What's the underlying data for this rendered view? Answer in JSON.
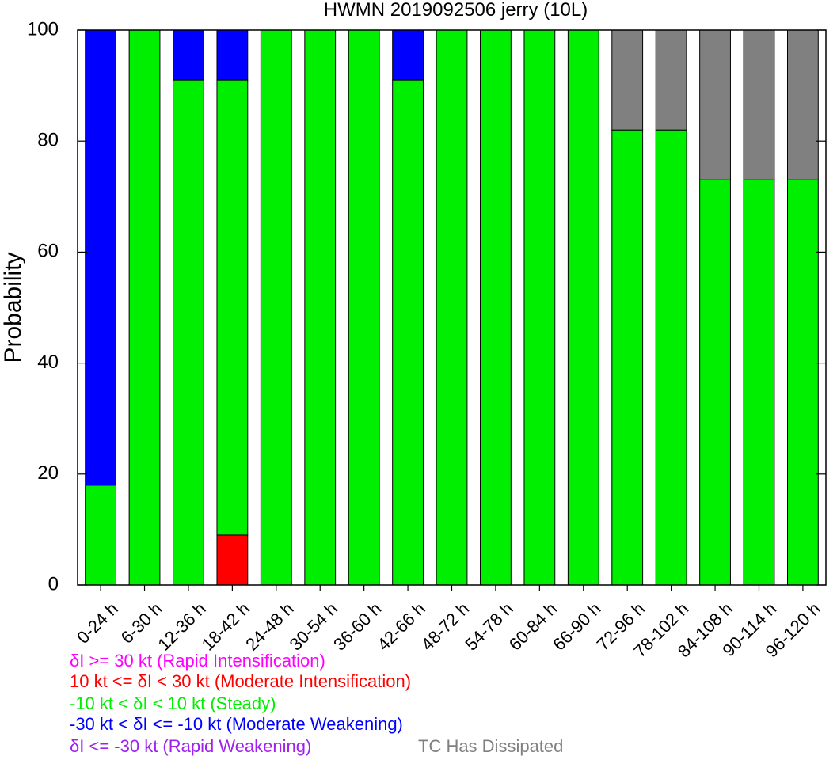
{
  "chart_data": {
    "type": "bar",
    "stacked": true,
    "title": "HWMN 2019092506 jerry (10L)",
    "xlabel": "",
    "ylabel": "Probability",
    "ylim": [
      0,
      100
    ],
    "yticks": [
      0,
      20,
      40,
      60,
      80,
      100
    ],
    "grid": false,
    "categories": [
      "0-24 h",
      "6-30 h",
      "12-36 h",
      "18-42 h",
      "24-48 h",
      "30-54 h",
      "36-60 h",
      "42-66 h",
      "48-72 h",
      "54-78 h",
      "60-84 h",
      "66-90 h",
      "72-96 h",
      "78-102 h",
      "84-108 h",
      "90-114 h",
      "96-120 h"
    ],
    "series": [
      {
        "name": "δI >= 30 kt (Rapid Intensification)",
        "color": "#ff00ff",
        "values": [
          0,
          0,
          0,
          0,
          0,
          0,
          0,
          0,
          0,
          0,
          0,
          0,
          0,
          0,
          0,
          0,
          0
        ]
      },
      {
        "name": "10 kt <= δI < 30 kt (Moderate Intensification)",
        "color": "#ff0000",
        "values": [
          0,
          0,
          0,
          9,
          0,
          0,
          0,
          0,
          0,
          0,
          0,
          0,
          0,
          0,
          0,
          0,
          0
        ]
      },
      {
        "name": "-10 kt < δI < 10 kt (Steady)",
        "color": "#00ee00",
        "values": [
          18,
          100,
          91,
          82,
          100,
          100,
          100,
          91,
          100,
          100,
          100,
          100,
          82,
          82,
          73,
          73,
          73
        ]
      },
      {
        "name": "-30 kt < δI <= -10 kt (Moderate Weakening)",
        "color": "#0000ff",
        "values": [
          82,
          0,
          9,
          9,
          0,
          0,
          0,
          9,
          0,
          0,
          0,
          0,
          0,
          0,
          0,
          0,
          0
        ]
      },
      {
        "name": "δI <= -30 kt (Rapid Weakening)",
        "color": "#a020f0",
        "values": [
          0,
          0,
          0,
          0,
          0,
          0,
          0,
          0,
          0,
          0,
          0,
          0,
          0,
          0,
          0,
          0,
          0
        ]
      },
      {
        "name": "TC Has Dissipated",
        "color": "#808080",
        "values": [
          0,
          0,
          0,
          0,
          0,
          0,
          0,
          0,
          0,
          0,
          0,
          0,
          18,
          18,
          27,
          27,
          27
        ]
      }
    ]
  }
}
